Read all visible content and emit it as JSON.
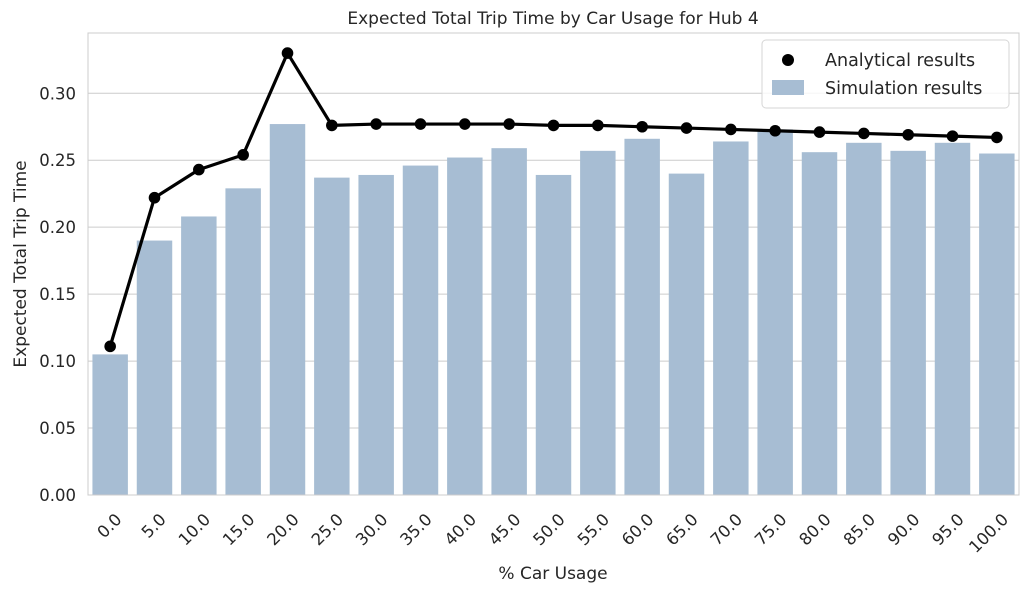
{
  "chart_data": {
    "type": "bar",
    "title": "Expected Total Trip Time by Car Usage for Hub 4",
    "xlabel": "% Car Usage",
    "ylabel": "Expected Total Trip Time",
    "categories": [
      "0.0",
      "5.0",
      "10.0",
      "15.0",
      "20.0",
      "25.0",
      "30.0",
      "35.0",
      "40.0",
      "45.0",
      "50.0",
      "55.0",
      "60.0",
      "65.0",
      "70.0",
      "75.0",
      "80.0",
      "85.0",
      "90.0",
      "95.0",
      "100.0"
    ],
    "yticks": [
      "0.00",
      "0.05",
      "0.10",
      "0.15",
      "0.20",
      "0.25",
      "0.30"
    ],
    "ylim": [
      0,
      0.345
    ],
    "grid": "horizontal",
    "legend_position": "top-right",
    "series": [
      {
        "name": "Simulation results",
        "kind": "bar",
        "color": "#a7bdd3",
        "values": [
          0.105,
          0.19,
          0.208,
          0.229,
          0.277,
          0.237,
          0.239,
          0.246,
          0.252,
          0.259,
          0.239,
          0.257,
          0.266,
          0.24,
          0.264,
          0.273,
          0.256,
          0.263,
          0.257,
          0.263,
          0.255
        ]
      },
      {
        "name": "Analytical results",
        "kind": "line-markers",
        "color": "#000000",
        "values": [
          0.111,
          0.222,
          0.243,
          0.254,
          0.33,
          0.276,
          0.277,
          0.277,
          0.277,
          0.277,
          0.276,
          0.276,
          0.275,
          0.274,
          0.273,
          0.272,
          0.271,
          0.27,
          0.269,
          0.268,
          0.267
        ]
      }
    ]
  }
}
